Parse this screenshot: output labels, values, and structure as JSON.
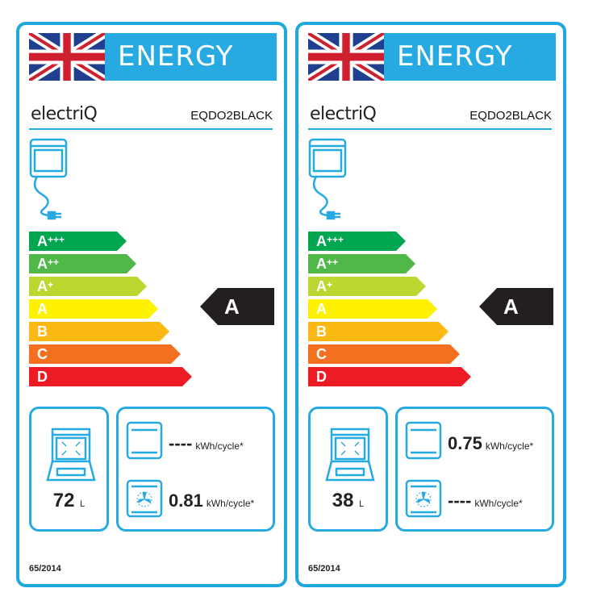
{
  "labels": [
    {
      "header": "ENERGY",
      "brand": "electriQ",
      "model": "EQDO2BLACK",
      "classes": [
        {
          "l": "A",
          "s": "+++"
        },
        {
          "l": "A",
          "s": "++"
        },
        {
          "l": "A",
          "s": "+"
        },
        {
          "l": "A",
          "s": ""
        },
        {
          "l": "B",
          "s": ""
        },
        {
          "l": "C",
          "s": ""
        },
        {
          "l": "D",
          "s": ""
        }
      ],
      "rating": "A",
      "volume": "72",
      "volume_unit": "L",
      "conventional": "----",
      "fan_forced": "0.81",
      "unit": "kWh/cycle*",
      "regulation": "65/2014"
    },
    {
      "header": "ENERGY",
      "brand": "electriQ",
      "model": "EQDO2BLACK",
      "classes": [
        {
          "l": "A",
          "s": "+++"
        },
        {
          "l": "A",
          "s": "++"
        },
        {
          "l": "A",
          "s": "+"
        },
        {
          "l": "A",
          "s": ""
        },
        {
          "l": "B",
          "s": ""
        },
        {
          "l": "C",
          "s": ""
        },
        {
          "l": "D",
          "s": ""
        }
      ],
      "rating": "A",
      "volume": "38",
      "volume_unit": "L",
      "conventional": "0.75",
      "fan_forced": "----",
      "unit": "kWh/cycle*",
      "regulation": "65/2014"
    }
  ],
  "colors": {
    "frame": "#27aae1",
    "classes": [
      "#00a650",
      "#50b848",
      "#bed630",
      "#fff200",
      "#fdb913",
      "#f37021",
      "#ed1c24"
    ],
    "rating": "#231f20"
  }
}
